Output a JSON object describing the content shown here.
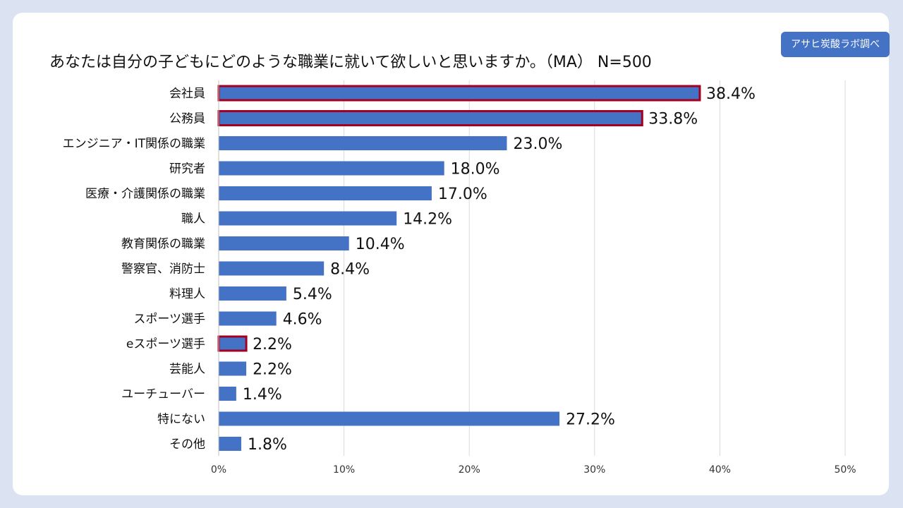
{
  "title": "あなたは自分の子どもにどのような職業に就いて欲しいと思いますか。（MA） N=500",
  "badge": "アサヒ炭酸ラボ調べ",
  "colors": {
    "bar": "#4472c4",
    "highlight_border": "#a50021",
    "grid": "#d9d9d9",
    "background": "#dbe3f3"
  },
  "chart_data": {
    "type": "bar",
    "orientation": "horizontal",
    "categories": [
      "会社員",
      "公務員",
      "エンジニア・IT関係の職業",
      "研究者",
      "医療・介護関係の職業",
      "職人",
      "教育関係の職業",
      "警察官、消防士",
      "料理人",
      "スポーツ選手",
      "eスポーツ選手",
      "芸能人",
      "ユーチューバー",
      "特にない",
      "その他"
    ],
    "values": [
      38.4,
      33.8,
      23.0,
      18.0,
      17.0,
      14.2,
      10.4,
      8.4,
      5.4,
      4.6,
      2.2,
      2.2,
      1.4,
      27.2,
      1.8
    ],
    "value_labels": [
      "38.4%",
      "33.8%",
      "23.0%",
      "18.0%",
      "17.0%",
      "14.2%",
      "10.4%",
      "8.4%",
      "5.4%",
      "4.6%",
      "2.2%",
      "2.2%",
      "1.4%",
      "27.2%",
      "1.8%"
    ],
    "highlighted": [
      "会社員",
      "公務員",
      "eスポーツ選手"
    ],
    "xlim": [
      0,
      50
    ],
    "xticks": [
      0,
      10,
      20,
      30,
      40,
      50
    ],
    "xtick_labels": [
      "0%",
      "10%",
      "20%",
      "30%",
      "40%",
      "50%"
    ],
    "grid": true
  }
}
